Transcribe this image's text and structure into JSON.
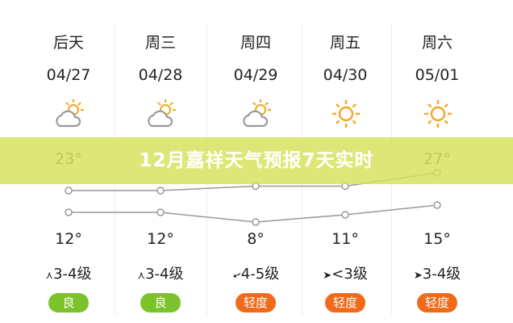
{
  "banner_title": "12月嘉祥天气预报7天实时",
  "days": [
    {
      "day": "后天",
      "date": "04/27",
      "weather_icon": "partly-cloudy-icon",
      "high": "23°",
      "high_value": 23,
      "low": "12°",
      "low_value": 12,
      "wind": "3-4级",
      "wind_icon": "wind-north-icon",
      "aqi": "良",
      "aqi_color": "#7cc22a"
    },
    {
      "day": "周三",
      "date": "04/28",
      "weather_icon": "partly-cloudy-icon",
      "high": "",
      "high_value": 23,
      "low": "12°",
      "low_value": 12,
      "wind": "3-4级",
      "wind_icon": "wind-north-icon",
      "aqi": "良",
      "aqi_color": "#7cc22a"
    },
    {
      "day": "周四",
      "date": "04/29",
      "weather_icon": "partly-cloudy-icon",
      "high": "",
      "high_value": 24,
      "low": "8°",
      "low_value": 8,
      "wind": "4-5级",
      "wind_icon": "wind-northwest-icon",
      "aqi": "轻度",
      "aqi_color": "#f06a1a"
    },
    {
      "day": "周五",
      "date": "04/30",
      "weather_icon": "sunny-icon",
      "high": "",
      "high_value": 24,
      "low": "11°",
      "low_value": 11,
      "wind": "<3级",
      "wind_icon": "wind-east-icon",
      "aqi": "轻度",
      "aqi_color": "#f06a1a"
    },
    {
      "day": "周六",
      "date": "05/01",
      "weather_icon": "sunny-icon",
      "high": "27°",
      "high_value": 27,
      "low": "15°",
      "low_value": 15,
      "wind": "3-4级",
      "wind_icon": "wind-east-icon",
      "aqi": "轻度",
      "aqi_color": "#f06a1a"
    }
  ]
}
